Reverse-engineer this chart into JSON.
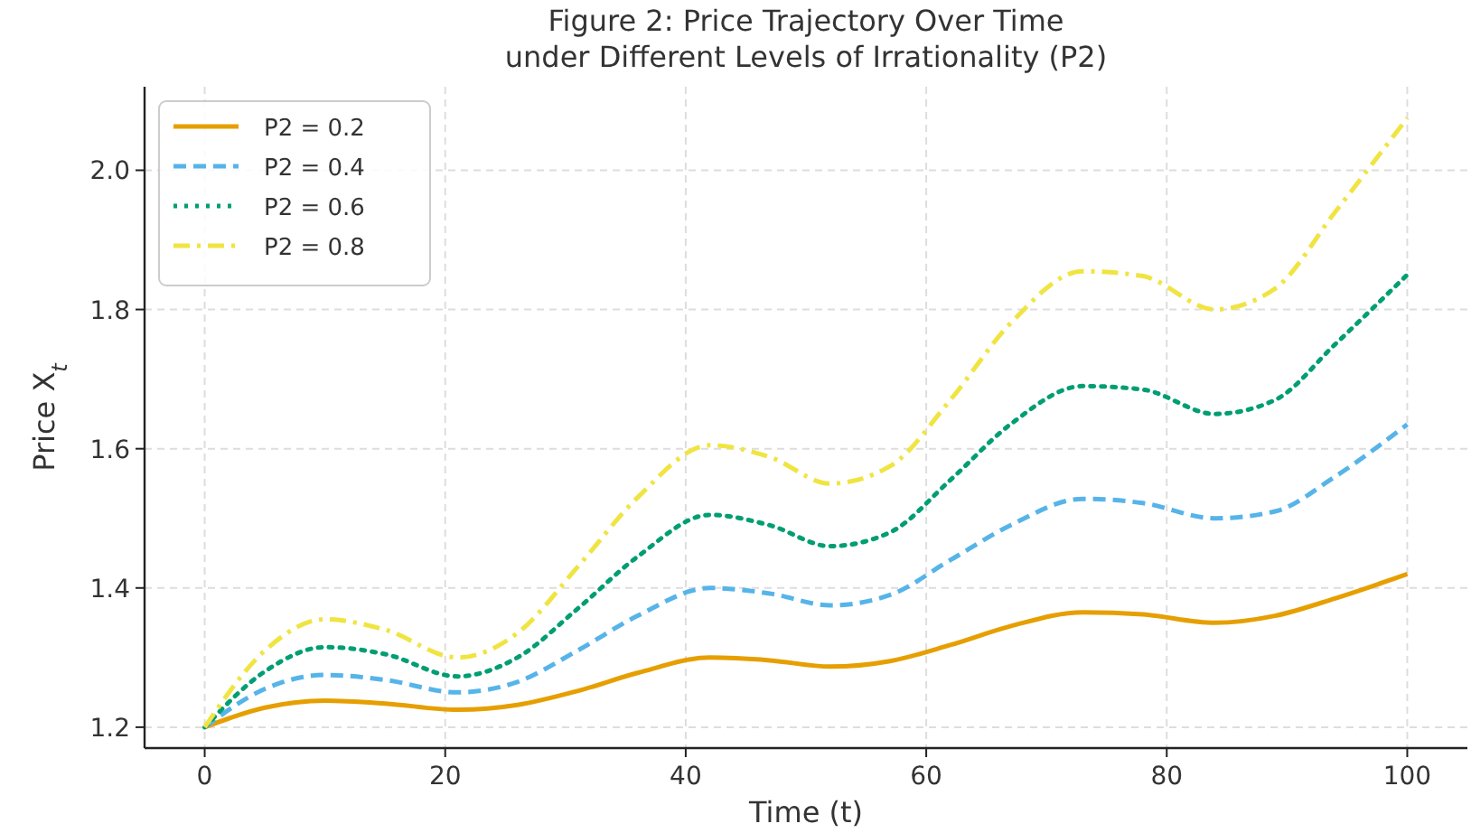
{
  "chart_data": {
    "type": "line",
    "title": "Figure 2: Price Trajectory Over Time\nunder Different Levels of Irrationality (P2)",
    "xlabel": "Time (t)",
    "ylabel": "Price X$_{t}$",
    "x": [
      0,
      5,
      10,
      15,
      21,
      26,
      31,
      36,
      42,
      47,
      52,
      57,
      62,
      67,
      73,
      78,
      84,
      89,
      94,
      100
    ],
    "xlim": [
      -5,
      105
    ],
    "xticks": [
      0,
      20,
      40,
      60,
      80,
      100
    ],
    "ylim": [
      1.17,
      2.12
    ],
    "yticks": [
      {
        "value": 1.2,
        "label": "1.2"
      },
      {
        "value": 1.4,
        "label": "1.4"
      },
      {
        "value": 1.6,
        "label": "1.6"
      },
      {
        "value": 1.8,
        "label": "1.8"
      },
      {
        "value": 2.0,
        "label": "2.0"
      }
    ],
    "grid": true,
    "legend": "top left",
    "series": [
      {
        "name": "P2 = 0.2",
        "color": "#e69f00",
        "line_style": "solid",
        "values": [
          1.2,
          1.228,
          1.238,
          1.234,
          1.225,
          1.232,
          1.252,
          1.278,
          1.3,
          1.296,
          1.287,
          1.295,
          1.318,
          1.345,
          1.365,
          1.362,
          1.35,
          1.36,
          1.385,
          1.42
        ]
      },
      {
        "name": "P2 = 0.4",
        "color": "#56b4e9",
        "line_style": "dashed",
        "values": [
          1.2,
          1.255,
          1.275,
          1.268,
          1.25,
          1.265,
          1.31,
          1.36,
          1.4,
          1.392,
          1.375,
          1.39,
          1.44,
          1.49,
          1.528,
          1.522,
          1.5,
          1.51,
          1.56,
          1.635
        ]
      },
      {
        "name": "P2 = 0.6",
        "color": "#009e73",
        "line_style": "dotted",
        "values": [
          1.2,
          1.28,
          1.315,
          1.305,
          1.273,
          1.3,
          1.37,
          1.445,
          1.505,
          1.49,
          1.46,
          1.48,
          1.555,
          1.635,
          1.69,
          1.685,
          1.65,
          1.67,
          1.75,
          1.85
        ]
      },
      {
        "name": "P2 = 0.8",
        "color": "#f0e442",
        "line_style": "dashdot",
        "values": [
          1.2,
          1.31,
          1.355,
          1.34,
          1.3,
          1.335,
          1.43,
          1.53,
          1.605,
          1.588,
          1.55,
          1.575,
          1.67,
          1.78,
          1.855,
          1.848,
          1.8,
          1.83,
          1.94,
          2.075
        ]
      }
    ]
  }
}
